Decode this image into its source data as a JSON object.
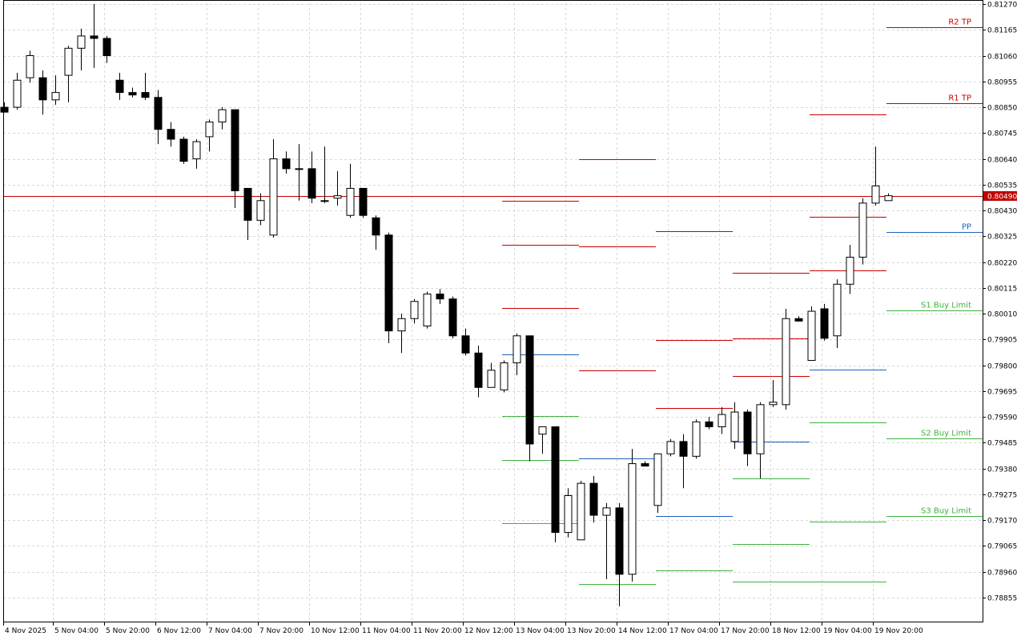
{
  "chart_data": {
    "type": "candlestick",
    "y_axis": {
      "ticks": [
        "0.81270",
        "0.81165",
        "0.81060",
        "0.80955",
        "0.80850",
        "0.80745",
        "0.80640",
        "0.80535",
        "0.80430",
        "0.80325",
        "0.80220",
        "0.80115",
        "0.80010",
        "0.79905",
        "0.79800",
        "0.79695",
        "0.79590",
        "0.79485",
        "0.79380",
        "0.79275",
        "0.79170",
        "0.79065",
        "0.78960",
        "0.78855"
      ],
      "range": [
        0.7881,
        0.8127
      ]
    },
    "x_axis": {
      "ticks": [
        "4 Nov 2025",
        "5 Nov 04:00",
        "5 Nov 20:00",
        "6 Nov 12:00",
        "7 Nov 04:00",
        "7 Nov 20:00",
        "10 Nov 12:00",
        "11 Nov 04:00",
        "11 Nov 20:00",
        "12 Nov 12:00",
        "13 Nov 04:00",
        "13 Nov 20:00",
        "14 Nov 12:00",
        "17 Nov 04:00",
        "17 Nov 20:00",
        "18 Nov 12:00",
        "19 Nov 04:00",
        "19 Nov 20:00"
      ]
    },
    "grid": true,
    "current_price": {
      "value": 0.8049,
      "label": "0.80490",
      "color": "#c00000"
    },
    "candles": [
      {
        "o": 0.8085,
        "h": 0.8087,
        "l": 0.8083,
        "c": 0.8083
      },
      {
        "o": 0.8085,
        "h": 0.8099,
        "l": 0.8084,
        "c": 0.8096
      },
      {
        "o": 0.8097,
        "h": 0.8108,
        "l": 0.8095,
        "c": 0.8106
      },
      {
        "o": 0.8097,
        "h": 0.81,
        "l": 0.8082,
        "c": 0.8088
      },
      {
        "o": 0.8088,
        "h": 0.8098,
        "l": 0.8086,
        "c": 0.8091
      },
      {
        "o": 0.8098,
        "h": 0.811,
        "l": 0.8087,
        "c": 0.8109
      },
      {
        "o": 0.8109,
        "h": 0.8117,
        "l": 0.81,
        "c": 0.8114
      },
      {
        "o": 0.8114,
        "h": 0.8127,
        "l": 0.8101,
        "c": 0.8113
      },
      {
        "o": 0.8113,
        "h": 0.8114,
        "l": 0.8103,
        "c": 0.8106
      },
      {
        "o": 0.8096,
        "h": 0.8099,
        "l": 0.8088,
        "c": 0.8091
      },
      {
        "o": 0.8091,
        "h": 0.8093,
        "l": 0.8089,
        "c": 0.809
      },
      {
        "o": 0.8091,
        "h": 0.8099,
        "l": 0.8088,
        "c": 0.8089
      },
      {
        "o": 0.8089,
        "h": 0.8092,
        "l": 0.807,
        "c": 0.8076
      },
      {
        "o": 0.8076,
        "h": 0.8079,
        "l": 0.8069,
        "c": 0.8072
      },
      {
        "o": 0.8072,
        "h": 0.8073,
        "l": 0.8062,
        "c": 0.8063
      },
      {
        "o": 0.8064,
        "h": 0.8072,
        "l": 0.806,
        "c": 0.8071
      },
      {
        "o": 0.8073,
        "h": 0.808,
        "l": 0.8067,
        "c": 0.8079
      },
      {
        "o": 0.8079,
        "h": 0.8085,
        "l": 0.8076,
        "c": 0.8084
      },
      {
        "o": 0.8084,
        "h": 0.8083,
        "l": 0.8044,
        "c": 0.8051
      },
      {
        "o": 0.8052,
        "h": 0.8052,
        "l": 0.8031,
        "c": 0.8039
      },
      {
        "o": 0.8039,
        "h": 0.805,
        "l": 0.8037,
        "c": 0.8047
      },
      {
        "o": 0.8033,
        "h": 0.8072,
        "l": 0.8032,
        "c": 0.8064
      },
      {
        "o": 0.8064,
        "h": 0.8067,
        "l": 0.8058,
        "c": 0.806
      },
      {
        "o": 0.806,
        "h": 0.807,
        "l": 0.8047,
        "c": 0.806
      },
      {
        "o": 0.806,
        "h": 0.8067,
        "l": 0.8046,
        "c": 0.8048
      },
      {
        "o": 0.8047,
        "h": 0.8069,
        "l": 0.8046,
        "c": 0.8047
      },
      {
        "o": 0.8048,
        "h": 0.8059,
        "l": 0.8045,
        "c": 0.8049
      },
      {
        "o": 0.8041,
        "h": 0.8062,
        "l": 0.804,
        "c": 0.8052
      },
      {
        "o": 0.8052,
        "h": 0.8052,
        "l": 0.804,
        "c": 0.8041
      },
      {
        "o": 0.804,
        "h": 0.8041,
        "l": 0.8027,
        "c": 0.8033
      },
      {
        "o": 0.8033,
        "h": 0.8034,
        "l": 0.7989,
        "c": 0.7994
      },
      {
        "o": 0.7994,
        "h": 0.8001,
        "l": 0.7985,
        "c": 0.7999
      },
      {
        "o": 0.7999,
        "h": 0.8007,
        "l": 0.7997,
        "c": 0.8006
      },
      {
        "o": 0.7996,
        "h": 0.801,
        "l": 0.7995,
        "c": 0.8009
      },
      {
        "o": 0.8009,
        "h": 0.8011,
        "l": 0.8005,
        "c": 0.8007
      },
      {
        "o": 0.8007,
        "h": 0.8008,
        "l": 0.7991,
        "c": 0.7992
      },
      {
        "o": 0.7992,
        "h": 0.7995,
        "l": 0.7984,
        "c": 0.7985
      },
      {
        "o": 0.7985,
        "h": 0.7988,
        "l": 0.7967,
        "c": 0.7971
      },
      {
        "o": 0.7971,
        "h": 0.7981,
        "l": 0.7971,
        "c": 0.7978
      },
      {
        "o": 0.797,
        "h": 0.7982,
        "l": 0.7969,
        "c": 0.7981
      },
      {
        "o": 0.7981,
        "h": 0.7993,
        "l": 0.7976,
        "c": 0.7992
      },
      {
        "o": 0.7992,
        "h": 0.7991,
        "l": 0.7941,
        "c": 0.7948
      },
      {
        "o": 0.7952,
        "h": 0.7954,
        "l": 0.7944,
        "c": 0.7955
      },
      {
        "o": 0.7955,
        "h": 0.7954,
        "l": 0.7908,
        "c": 0.7912
      },
      {
        "o": 0.7912,
        "h": 0.793,
        "l": 0.791,
        "c": 0.7927
      },
      {
        "o": 0.7909,
        "h": 0.7933,
        "l": 0.7909,
        "c": 0.7932
      },
      {
        "o": 0.7932,
        "h": 0.7935,
        "l": 0.7916,
        "c": 0.7919
      },
      {
        "o": 0.7919,
        "h": 0.7924,
        "l": 0.7893,
        "c": 0.7922
      },
      {
        "o": 0.7922,
        "h": 0.7924,
        "l": 0.7882,
        "c": 0.7895
      },
      {
        "o": 0.7895,
        "h": 0.7946,
        "l": 0.7892,
        "c": 0.794
      },
      {
        "o": 0.794,
        "h": 0.7941,
        "l": 0.7939,
        "c": 0.7939
      },
      {
        "o": 0.7923,
        "h": 0.7944,
        "l": 0.792,
        "c": 0.7944
      },
      {
        "o": 0.7944,
        "h": 0.795,
        "l": 0.7943,
        "c": 0.7949
      },
      {
        "o": 0.7949,
        "h": 0.7952,
        "l": 0.793,
        "c": 0.7943
      },
      {
        "o": 0.7943,
        "h": 0.7958,
        "l": 0.7942,
        "c": 0.7957
      },
      {
        "o": 0.7957,
        "h": 0.7959,
        "l": 0.7954,
        "c": 0.7955
      },
      {
        "o": 0.7955,
        "h": 0.7963,
        "l": 0.7952,
        "c": 0.796
      },
      {
        "o": 0.7949,
        "h": 0.7965,
        "l": 0.7946,
        "c": 0.7961
      },
      {
        "o": 0.7961,
        "h": 0.7962,
        "l": 0.7939,
        "c": 0.7944
      },
      {
        "o": 0.7944,
        "h": 0.7965,
        "l": 0.7934,
        "c": 0.7964
      },
      {
        "o": 0.7964,
        "h": 0.7974,
        "l": 0.7963,
        "c": 0.7965
      },
      {
        "o": 0.7964,
        "h": 0.8003,
        "l": 0.7962,
        "c": 0.7999
      },
      {
        "o": 0.7999,
        "h": 0.8,
        "l": 0.7998,
        "c": 0.7998
      },
      {
        "o": 0.7982,
        "h": 0.8004,
        "l": 0.7982,
        "c": 0.8002
      },
      {
        "o": 0.8003,
        "h": 0.8005,
        "l": 0.799,
        "c": 0.7991
      },
      {
        "o": 0.7992,
        "h": 0.8015,
        "l": 0.7987,
        "c": 0.8013
      },
      {
        "o": 0.8013,
        "h": 0.8029,
        "l": 0.8009,
        "c": 0.8024
      },
      {
        "o": 0.8024,
        "h": 0.8048,
        "l": 0.8021,
        "c": 0.8046
      },
      {
        "o": 0.8046,
        "h": 0.8069,
        "l": 0.8045,
        "c": 0.8053
      },
      {
        "o": 0.8047,
        "h": 0.805,
        "l": 0.8047,
        "c": 0.8049
      }
    ],
    "pivot_periods": [
      {
        "start_candle": 39,
        "end_candle": 45,
        "levels": [
          {
            "role": "R",
            "value": 0.80469
          },
          {
            "role": "R",
            "value": 0.80289
          },
          {
            "role": "R",
            "value": 0.80032
          },
          {
            "role": "P",
            "value": 0.79845
          },
          {
            "role": "S",
            "value": 0.79595
          },
          {
            "role": "S",
            "value": 0.79415
          },
          {
            "role": "S",
            "value": 0.79158
          }
        ]
      },
      {
        "start_candle": 45,
        "end_candle": 51,
        "levels": [
          {
            "role": "R",
            "value": 0.8064
          },
          {
            "role": "R",
            "value": 0.80283
          },
          {
            "role": "R",
            "value": 0.79778
          },
          {
            "role": "P",
            "value": 0.7942
          },
          {
            "role": "S",
            "value": 0.78911
          }
        ]
      },
      {
        "start_candle": 51,
        "end_candle": 57,
        "levels": [
          {
            "role": "R",
            "value": 0.80346
          },
          {
            "role": "R",
            "value": 0.79904
          },
          {
            "role": "R",
            "value": 0.79626
          },
          {
            "role": "P",
            "value": 0.79187
          },
          {
            "role": "S",
            "value": 0.78965
          }
        ]
      },
      {
        "start_candle": 57,
        "end_candle": 63,
        "levels": [
          {
            "role": "R",
            "value": 0.80178
          },
          {
            "role": "R",
            "value": 0.7991
          },
          {
            "role": "R",
            "value": 0.79758
          },
          {
            "role": "P",
            "value": 0.79491
          },
          {
            "role": "S",
            "value": 0.79339
          },
          {
            "role": "S",
            "value": 0.79072
          },
          {
            "role": "S",
            "value": 0.7892
          }
        ]
      },
      {
        "start_candle": 63,
        "end_candle": 69,
        "levels": [
          {
            "role": "R",
            "value": 0.80822
          },
          {
            "role": "R",
            "value": 0.80403
          },
          {
            "role": "R",
            "value": 0.80187
          },
          {
            "role": "P",
            "value": 0.79784
          },
          {
            "role": "S",
            "value": 0.79568
          },
          {
            "role": "S",
            "value": 0.79165
          },
          {
            "role": "S",
            "value": 0.7892
          }
        ]
      }
    ],
    "trade_levels": [
      {
        "label": "R2 TP",
        "value": 0.81177,
        "color": "#cc0000"
      },
      {
        "label": "R1 TP",
        "value": 0.80866,
        "color": "#cc0000"
      },
      {
        "label": "PP",
        "value": 0.80342,
        "color": "#2060c0"
      },
      {
        "label": "S1 Buy Limit",
        "value": 0.80024,
        "color": "#40b040"
      },
      {
        "label": "S2 Buy Limit",
        "value": 0.79502,
        "color": "#40b040"
      },
      {
        "label": "S3 Buy Limit",
        "value": 0.79188,
        "color": "#40b040"
      }
    ],
    "colors": {
      "bull_fill": "#ffffff",
      "bear_fill": "#000000",
      "wick": "#000000",
      "resistance": "#cc0000",
      "pivot": "#2060c0",
      "support": "#40b040",
      "grid": "#d8d8d8",
      "axis": "#000000"
    }
  }
}
